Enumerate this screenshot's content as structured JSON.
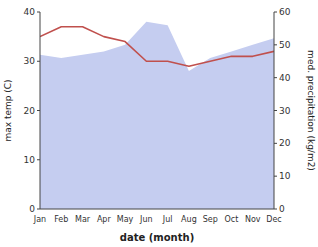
{
  "chart_data": {
    "type": "line",
    "xlabel": "date (month)",
    "ylabel": "max temp (C)",
    "y2label": "med. precipitation (kg/m2)",
    "categories": [
      "Jan",
      "Feb",
      "Mar",
      "Apr",
      "May",
      "Jun",
      "Jul",
      "Aug",
      "Sep",
      "Oct",
      "Nov",
      "Dec"
    ],
    "series": [
      {
        "type": "area",
        "axis": "y2",
        "color": "#c5cdf0",
        "values": [
          47.0,
          46.0,
          47.0,
          48.0,
          50.0,
          57.0,
          56.0,
          42.0,
          46.0,
          48.0,
          50.0,
          52.0
        ]
      },
      {
        "type": "line",
        "color": "#c0504d",
        "values": [
          35.0,
          37.0,
          37.0,
          35.0,
          34.0,
          30.0,
          30.0,
          29.0,
          30.0,
          31.0,
          31.0,
          32.0
        ]
      }
    ],
    "ylim": [
      0,
      40
    ],
    "yticks": [
      0,
      10,
      20,
      30,
      40
    ],
    "y2lim": [
      0,
      60
    ],
    "y2ticks": [
      0,
      10,
      20,
      30,
      40,
      50,
      60
    ],
    "grid": false
  }
}
